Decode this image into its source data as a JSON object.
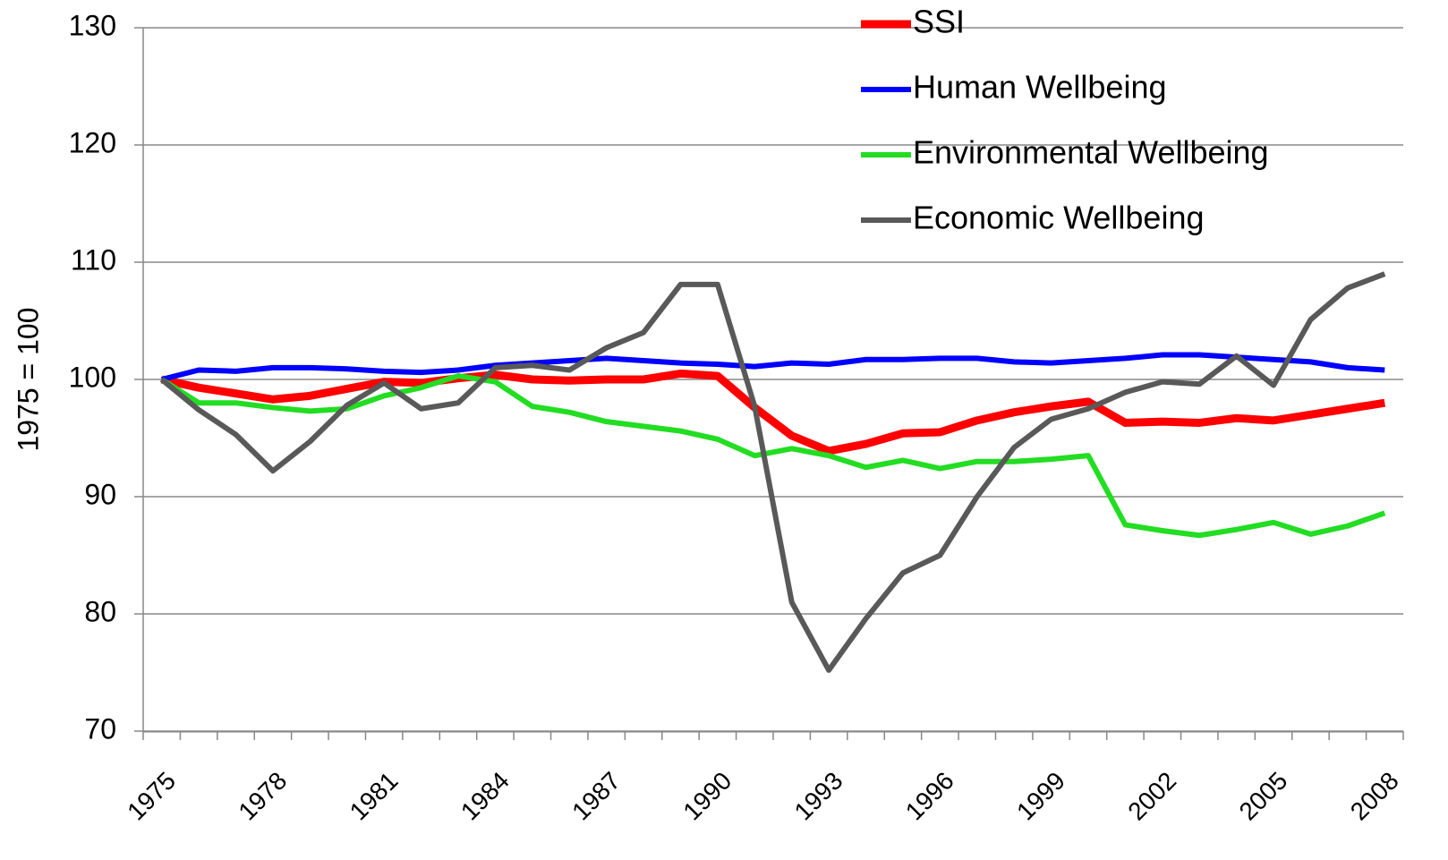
{
  "chart_data": {
    "type": "line",
    "ylabel": "1975 = 100",
    "categories": [
      "1975",
      null,
      null,
      "1978",
      null,
      null,
      "1981",
      null,
      null,
      "1984",
      null,
      null,
      "1987",
      null,
      null,
      "1990",
      null,
      null,
      "1993",
      null,
      null,
      "1996",
      null,
      null,
      "1999",
      null,
      null,
      "2002",
      null,
      null,
      "2005",
      null,
      null,
      "2008"
    ],
    "series": [
      {
        "name": "SSI",
        "color": "#ff0000",
        "values": [
          100,
          99.3,
          98.8,
          98.3,
          98.6,
          99.2,
          99.8,
          99.7,
          100.1,
          100.4,
          100.0,
          99.9,
          100.0,
          100.0,
          100.5,
          100.3,
          97.6,
          95.2,
          93.9,
          94.5,
          95.4,
          95.5,
          96.5,
          97.2,
          97.7,
          98.1,
          96.3,
          96.4,
          96.3,
          96.7,
          96.5,
          97.0,
          97.5,
          98.0
        ]
      },
      {
        "name": "Human Wellbeing",
        "color": "#0000ff",
        "values": [
          100,
          100.8,
          100.7,
          101.0,
          101.0,
          100.9,
          100.7,
          100.6,
          100.8,
          101.2,
          101.4,
          101.6,
          101.8,
          101.6,
          101.4,
          101.3,
          101.1,
          101.4,
          101.3,
          101.7,
          101.7,
          101.8,
          101.8,
          101.5,
          101.4,
          101.6,
          101.8,
          102.1,
          102.1,
          101.9,
          101.7,
          101.5,
          101.0,
          100.8
        ]
      },
      {
        "name": "Environmental Wellbeing",
        "color": "#22dd22",
        "values": [
          100,
          98.0,
          98.0,
          97.6,
          97.3,
          97.5,
          98.6,
          99.3,
          100.3,
          99.8,
          97.7,
          97.2,
          96.4,
          96.0,
          95.6,
          94.9,
          93.5,
          94.1,
          93.5,
          92.5,
          93.1,
          92.4,
          93.0,
          93.0,
          93.2,
          93.5,
          87.6,
          87.1,
          86.7,
          87.2,
          87.8,
          86.8,
          87.5,
          88.6
        ]
      },
      {
        "name": "Economic Wellbeing",
        "color": "#595959",
        "values": [
          100,
          97.4,
          95.3,
          92.2,
          94.7,
          97.8,
          99.7,
          97.5,
          98.0,
          101.0,
          101.2,
          100.8,
          102.7,
          104.0,
          108.1,
          108.1,
          97.7,
          81.0,
          75.2,
          79.6,
          83.5,
          85.0,
          90.0,
          94.2,
          96.6,
          97.5,
          98.9,
          99.8,
          99.6,
          102.0,
          99.5,
          105.1,
          107.8,
          109.0
        ]
      }
    ],
    "ylim": [
      70,
      130
    ],
    "yticks": [
      70,
      80,
      90,
      100,
      110,
      120,
      130
    ],
    "grid": true,
    "legend": "top"
  }
}
